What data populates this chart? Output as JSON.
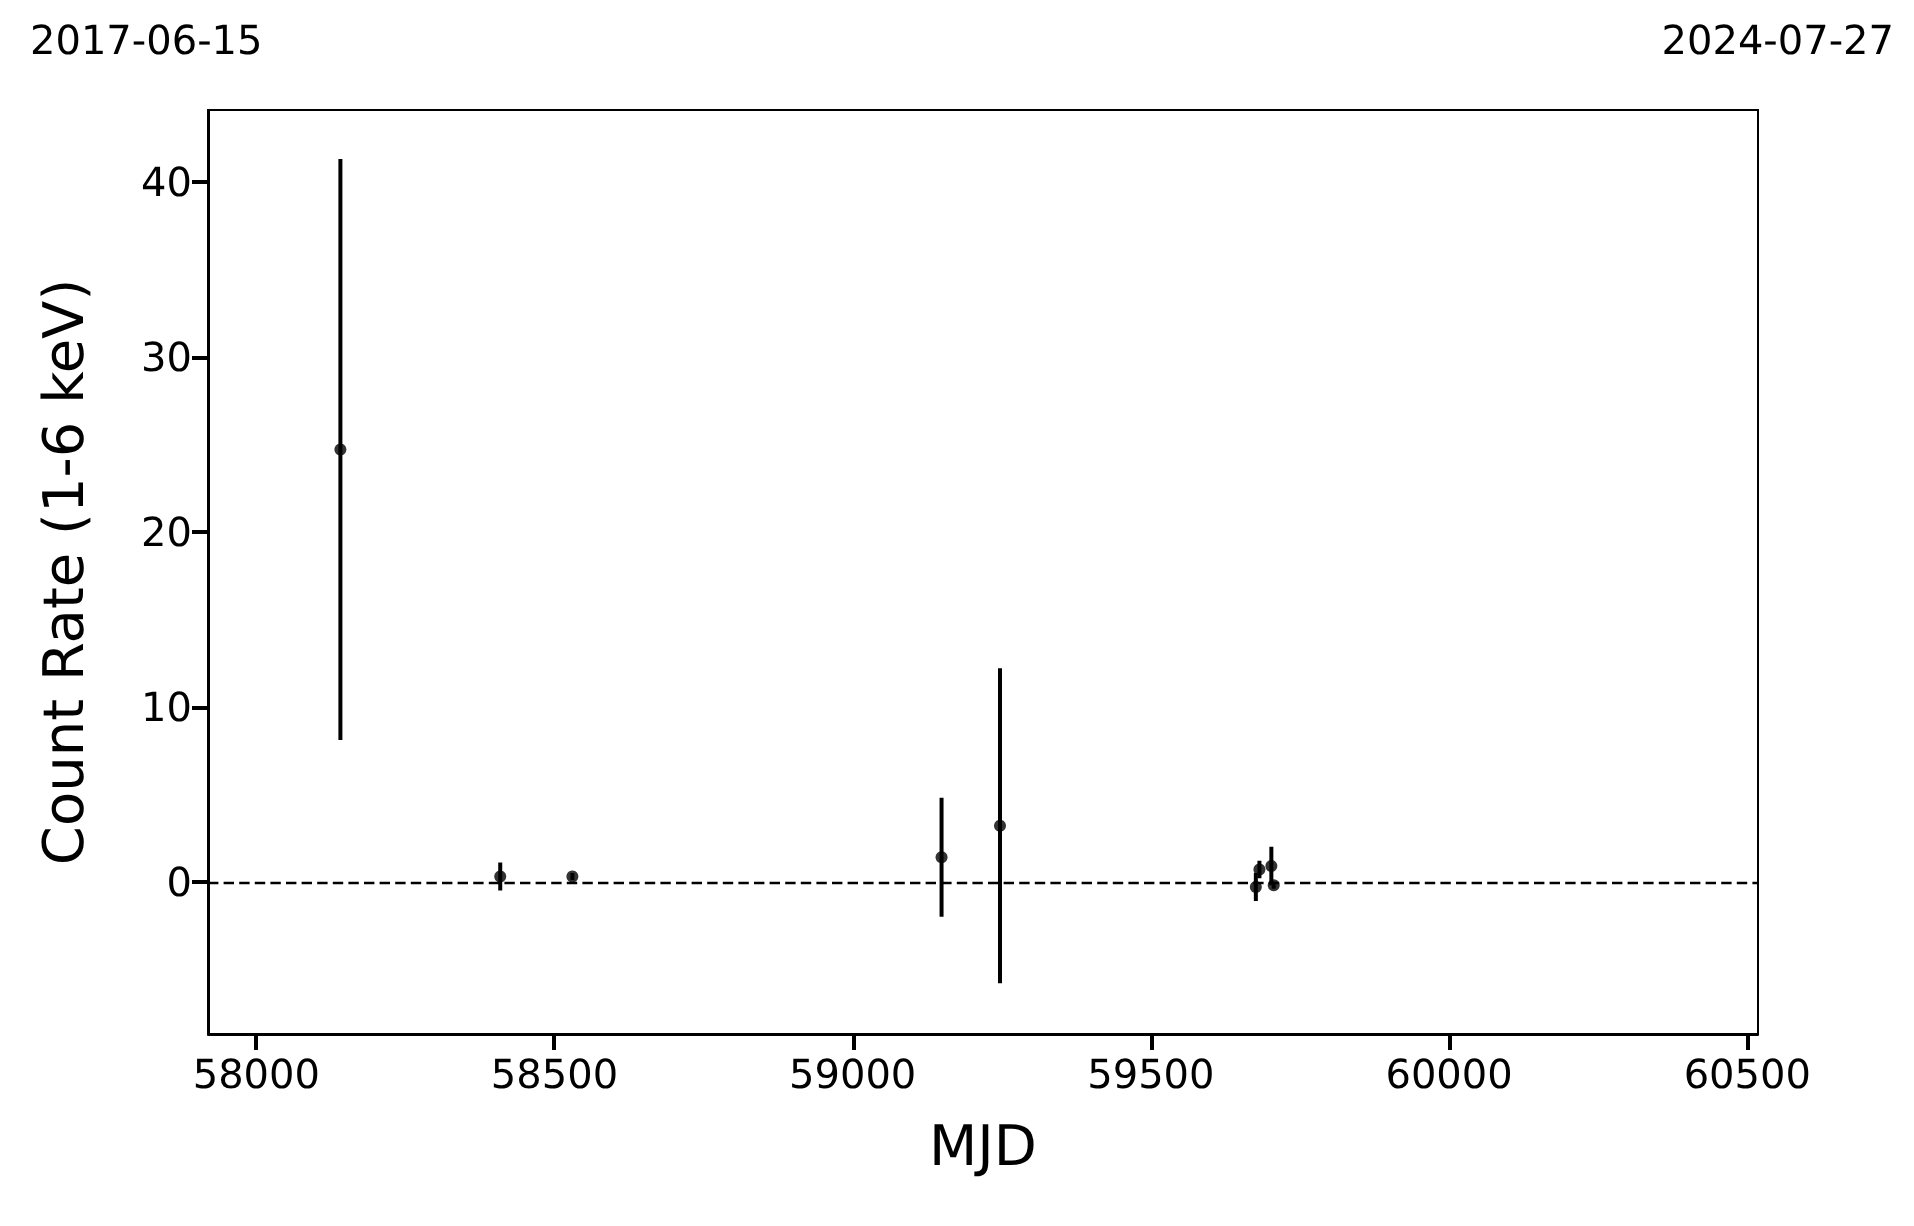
{
  "chart_data": {
    "type": "scatter",
    "xlabel": "MJD",
    "ylabel": "Count Rate (1-6 keV)",
    "x": [
      58141,
      58409,
      58530,
      59149,
      59247,
      59676,
      59682,
      59702,
      59706
    ],
    "values": [
      24.7,
      0.3,
      0.3,
      1.4,
      3.2,
      -0.3,
      0.7,
      0.9,
      -0.2
    ],
    "errors": [
      16.6,
      0.8,
      0.2,
      3.4,
      9.0,
      0.8,
      0.5,
      1.1,
      0.2
    ],
    "color": "#000000",
    "marker": "circle",
    "grid": false,
    "xlim": [
      57919,
      60518
    ],
    "xticks": [
      58000,
      58500,
      59000,
      59500,
      60000,
      60500
    ],
    "ylim": [
      -8.7,
      44.1
    ],
    "yticks": [
      0,
      10,
      20,
      30,
      40
    ],
    "annotations": [
      "2017-06-15",
      "2024-07-27"
    ],
    "ref_lines": [
      {
        "axis": "y",
        "value": 0,
        "color": "#000000",
        "line_style": "dashed"
      }
    ]
  }
}
